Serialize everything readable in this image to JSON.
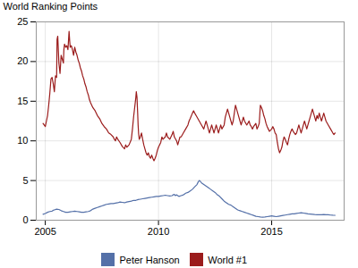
{
  "chart_data": {
    "type": "line",
    "ylabel": "World Ranking Points",
    "xlim": [
      2004.6,
      2018.2
    ],
    "xticks": [
      2005,
      2010,
      2015
    ],
    "ylim": [
      0,
      25
    ],
    "yticks": [
      0,
      5,
      10,
      15,
      20,
      25
    ],
    "grid": true,
    "legend": "bottom",
    "series": [
      {
        "name": "Peter Hanson",
        "color": "#5470a8",
        "x": [
          2004.9,
          2005.0,
          2005.1,
          2005.2,
          2005.3,
          2005.35,
          2005.4,
          2005.5,
          2005.6,
          2005.7,
          2005.8,
          2005.9,
          2006.0,
          2006.1,
          2006.2,
          2006.3,
          2006.4,
          2006.5,
          2006.6,
          2006.7,
          2006.8,
          2006.9,
          2007.0,
          2007.1,
          2007.2,
          2007.3,
          2007.4,
          2007.5,
          2007.6,
          2007.7,
          2007.8,
          2007.9,
          2008.0,
          2008.1,
          2008.2,
          2008.3,
          2008.4,
          2008.5,
          2008.6,
          2008.7,
          2008.8,
          2008.9,
          2009.0,
          2009.1,
          2009.2,
          2009.3,
          2009.4,
          2009.5,
          2009.6,
          2009.7,
          2009.8,
          2009.9,
          2010.0,
          2010.1,
          2010.2,
          2010.3,
          2010.4,
          2010.5,
          2010.6,
          2010.65,
          2010.7,
          2010.75,
          2010.8,
          2010.85,
          2010.9,
          2011.0,
          2011.1,
          2011.15,
          2011.2,
          2011.3,
          2011.4,
          2011.5,
          2011.6,
          2011.7,
          2011.75,
          2011.8,
          2011.85,
          2011.9,
          2012.0,
          2012.1,
          2012.2,
          2012.3,
          2012.4,
          2012.5,
          2012.6,
          2012.7,
          2012.8,
          2012.9,
          2013.0,
          2013.1,
          2013.2,
          2013.3,
          2013.4,
          2013.5,
          2013.6,
          2013.7,
          2013.8,
          2013.9,
          2014.0,
          2014.1,
          2014.2,
          2014.3,
          2014.4,
          2014.5,
          2014.6,
          2014.7,
          2014.8,
          2014.9,
          2015.0,
          2015.1,
          2015.2,
          2015.3,
          2015.4,
          2015.5,
          2015.6,
          2015.7,
          2015.8,
          2015.9,
          2016.0,
          2016.1,
          2016.2,
          2016.3,
          2016.4,
          2016.5,
          2016.6,
          2016.7,
          2016.8,
          2016.9,
          2017.0,
          2017.1,
          2017.2,
          2017.3,
          2017.4,
          2017.5,
          2017.6,
          2017.7,
          2017.8
        ],
        "values": [
          0.75,
          0.85,
          1.0,
          1.1,
          1.15,
          1.25,
          1.3,
          1.4,
          1.35,
          1.2,
          1.1,
          1.0,
          1.0,
          1.05,
          1.1,
          1.15,
          1.1,
          1.05,
          1.0,
          1.0,
          1.05,
          1.1,
          1.2,
          1.4,
          1.5,
          1.6,
          1.7,
          1.8,
          1.9,
          2.0,
          2.05,
          2.1,
          2.1,
          2.15,
          2.2,
          2.3,
          2.25,
          2.2,
          2.3,
          2.35,
          2.4,
          2.5,
          2.5,
          2.6,
          2.65,
          2.7,
          2.75,
          2.8,
          2.85,
          2.9,
          2.95,
          3.0,
          3.0,
          3.05,
          3.1,
          3.15,
          3.1,
          3.05,
          3.1,
          3.2,
          3.25,
          3.1,
          3.2,
          3.1,
          3.0,
          3.1,
          3.2,
          3.3,
          3.4,
          3.5,
          3.7,
          3.9,
          4.2,
          4.5,
          4.8,
          5.0,
          4.9,
          4.7,
          4.5,
          4.3,
          4.1,
          3.9,
          3.7,
          3.5,
          3.2,
          3.0,
          2.7,
          2.4,
          2.2,
          2.0,
          1.9,
          1.7,
          1.5,
          1.3,
          1.2,
          1.1,
          1.0,
          0.9,
          0.8,
          0.7,
          0.6,
          0.5,
          0.45,
          0.4,
          0.38,
          0.4,
          0.45,
          0.5,
          0.55,
          0.5,
          0.45,
          0.5,
          0.55,
          0.6,
          0.65,
          0.7,
          0.75,
          0.8,
          0.8,
          0.85,
          0.9,
          0.95,
          0.9,
          0.85,
          0.8,
          0.78,
          0.75,
          0.72,
          0.7,
          0.68,
          0.7,
          0.72,
          0.7,
          0.68,
          0.65,
          0.63,
          0.62
        ]
      },
      {
        "name": "World #1",
        "color": "#9b1c1c",
        "x": [
          2004.9,
          2005.0,
          2005.05,
          2005.1,
          2005.15,
          2005.2,
          2005.25,
          2005.3,
          2005.35,
          2005.4,
          2005.45,
          2005.5,
          2005.52,
          2005.55,
          2005.6,
          2005.65,
          2005.7,
          2005.75,
          2005.8,
          2005.82,
          2005.85,
          2005.9,
          2005.95,
          2006.0,
          2006.05,
          2006.08,
          2006.1,
          2006.15,
          2006.2,
          2006.25,
          2006.3,
          2006.35,
          2006.4,
          2006.45,
          2006.5,
          2006.55,
          2006.6,
          2006.65,
          2006.7,
          2006.75,
          2006.8,
          2006.85,
          2006.9,
          2006.95,
          2007.0,
          2007.1,
          2007.2,
          2007.3,
          2007.4,
          2007.5,
          2007.6,
          2007.7,
          2007.8,
          2007.9,
          2008.0,
          2008.05,
          2008.1,
          2008.15,
          2008.2,
          2008.3,
          2008.4,
          2008.5,
          2008.55,
          2008.6,
          2008.7,
          2008.8,
          2008.85,
          2008.9,
          2009.0,
          2009.02,
          2009.05,
          2009.08,
          2009.1,
          2009.12,
          2009.15,
          2009.2,
          2009.25,
          2009.3,
          2009.35,
          2009.4,
          2009.45,
          2009.5,
          2009.55,
          2009.6,
          2009.65,
          2009.7,
          2009.75,
          2009.8,
          2009.85,
          2009.9,
          2009.95,
          2010.0,
          2010.1,
          2010.15,
          2010.2,
          2010.3,
          2010.35,
          2010.4,
          2010.5,
          2010.6,
          2010.65,
          2010.7,
          2010.8,
          2010.85,
          2010.9,
          2010.95,
          2011.0,
          2011.1,
          2011.2,
          2011.3,
          2011.35,
          2011.4,
          2011.5,
          2011.55,
          2011.6,
          2011.7,
          2011.8,
          2011.9,
          2012.0,
          2012.05,
          2012.1,
          2012.15,
          2012.2,
          2012.25,
          2012.3,
          2012.35,
          2012.4,
          2012.45,
          2012.5,
          2012.55,
          2012.6,
          2012.65,
          2012.7,
          2012.75,
          2012.8,
          2012.9,
          2012.95,
          2013.0,
          2013.05,
          2013.1,
          2013.15,
          2013.2,
          2013.25,
          2013.3,
          2013.35,
          2013.4,
          2013.45,
          2013.5,
          2013.55,
          2013.6,
          2013.65,
          2013.7,
          2013.75,
          2013.8,
          2013.9,
          2014.0,
          2014.05,
          2014.1,
          2014.15,
          2014.2,
          2014.3,
          2014.35,
          2014.4,
          2014.45,
          2014.5,
          2014.55,
          2014.6,
          2014.65,
          2014.7,
          2014.75,
          2014.8,
          2014.85,
          2014.9,
          2015.0,
          2015.05,
          2015.1,
          2015.15,
          2015.2,
          2015.25,
          2015.3,
          2015.35,
          2015.4,
          2015.45,
          2015.5,
          2015.55,
          2015.6,
          2015.65,
          2015.7,
          2015.75,
          2015.8,
          2015.85,
          2015.9,
          2015.95,
          2016.0,
          2016.05,
          2016.1,
          2016.15,
          2016.2,
          2016.25,
          2016.3,
          2016.35,
          2016.4,
          2016.45,
          2016.5,
          2016.55,
          2016.6,
          2016.65,
          2016.7,
          2016.75,
          2016.8,
          2016.85,
          2016.9,
          2016.95,
          2017.0,
          2017.05,
          2017.1,
          2017.15,
          2017.2,
          2017.25,
          2017.3,
          2017.35,
          2017.4,
          2017.5,
          2017.6,
          2017.7,
          2017.75,
          2017.8
        ],
        "values": [
          12.2,
          11.8,
          12.5,
          13.2,
          14.5,
          16.0,
          17.8,
          18.0,
          17.2,
          16.2,
          18.2,
          18.0,
          22.8,
          23.2,
          19.8,
          18.5,
          20.8,
          20.3,
          19.8,
          21.5,
          22.2,
          21.8,
          22.0,
          21.5,
          23.8,
          22.5,
          21.8,
          22.0,
          21.5,
          20.8,
          21.8,
          21.2,
          20.8,
          20.2,
          19.8,
          19.2,
          18.8,
          18.2,
          17.8,
          17.2,
          16.8,
          16.2,
          15.8,
          15.2,
          14.8,
          14.2,
          13.8,
          13.2,
          12.8,
          12.2,
          11.8,
          11.5,
          11.0,
          10.8,
          10.5,
          10.2,
          10.0,
          10.5,
          10.2,
          9.8,
          9.3,
          9.0,
          9.5,
          9.2,
          9.5,
          10.2,
          11.5,
          13.0,
          15.5,
          16.2,
          15.5,
          13.5,
          12.0,
          11.0,
          10.2,
          10.5,
          11.0,
          10.2,
          9.5,
          9.0,
          8.5,
          8.2,
          8.5,
          8.0,
          7.8,
          8.2,
          7.8,
          7.5,
          7.8,
          8.2,
          8.8,
          9.2,
          9.8,
          10.5,
          10.2,
          10.5,
          11.0,
          10.5,
          10.2,
          10.8,
          11.2,
          10.5,
          10.0,
          9.5,
          10.0,
          10.5,
          10.5,
          11.0,
          11.5,
          12.0,
          12.5,
          12.8,
          13.5,
          13.8,
          13.5,
          13.0,
          12.5,
          12.0,
          11.5,
          12.0,
          12.5,
          12.0,
          11.5,
          11.0,
          11.5,
          12.0,
          11.5,
          11.0,
          11.5,
          12.0,
          11.5,
          11.0,
          11.5,
          12.0,
          11.5,
          12.0,
          13.0,
          13.5,
          14.0,
          13.5,
          13.0,
          12.5,
          12.0,
          12.5,
          13.5,
          14.5,
          14.0,
          13.5,
          13.0,
          12.5,
          12.0,
          12.5,
          13.0,
          12.5,
          12.0,
          12.5,
          12.0,
          11.8,
          11.5,
          11.8,
          12.2,
          11.5,
          11.8,
          12.2,
          14.5,
          14.2,
          13.8,
          13.2,
          12.8,
          12.2,
          11.8,
          11.5,
          11.2,
          11.5,
          11.8,
          11.5,
          11.0,
          10.8,
          9.8,
          9.0,
          8.5,
          8.8,
          9.2,
          10.0,
          10.5,
          10.2,
          9.8,
          9.5,
          10.2,
          10.8,
          11.2,
          11.5,
          11.2,
          11.0,
          10.8,
          11.0,
          11.5,
          12.0,
          11.5,
          11.0,
          11.5,
          12.0,
          12.5,
          12.0,
          11.5,
          12.0,
          12.5,
          13.0,
          13.5,
          14.0,
          13.5,
          13.0,
          12.5,
          13.2,
          12.8,
          13.5,
          13.0,
          12.5,
          13.0,
          13.5,
          13.0,
          12.5,
          12.0,
          11.5,
          11.0,
          10.8,
          11.0
        ]
      }
    ]
  }
}
